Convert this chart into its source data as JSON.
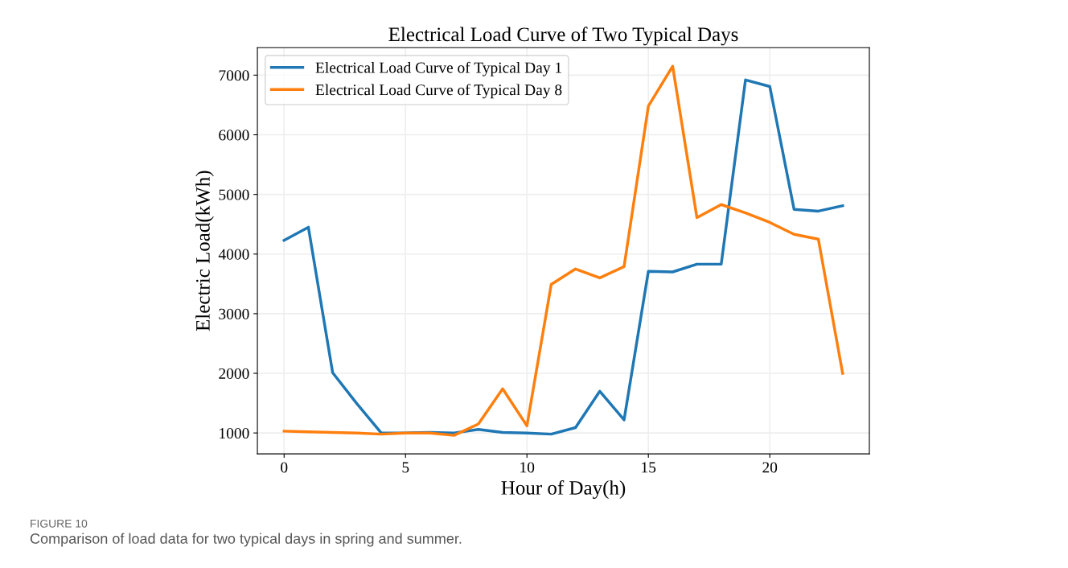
{
  "chart_data": {
    "type": "line",
    "title": "Electrical Load Curve of Two Typical Days",
    "xlabel": "Hour of Day(h)",
    "ylabel": "Electric Load(kWh)",
    "x": [
      0,
      1,
      2,
      3,
      4,
      5,
      6,
      7,
      8,
      9,
      10,
      11,
      12,
      13,
      14,
      15,
      16,
      17,
      18,
      19,
      20,
      21,
      22,
      23
    ],
    "series": [
      {
        "name": "Electrical Load Curve of Typical Day 1",
        "color": "#1f77b4",
        "values": [
          4230,
          4450,
          2010,
          1490,
          1000,
          1000,
          1010,
          1000,
          1060,
          1010,
          1000,
          980,
          1090,
          1700,
          1220,
          3710,
          3700,
          3830,
          3830,
          6920,
          6810,
          4750,
          4720,
          4810
        ]
      },
      {
        "name": "Electrical Load Curve of Typical Day 8",
        "color": "#ff7f0e",
        "values": [
          1030,
          1020,
          1010,
          1000,
          980,
          1000,
          1000,
          960,
          1150,
          1740,
          1120,
          3490,
          3750,
          3600,
          3790,
          6480,
          7150,
          4610,
          4830,
          4690,
          4530,
          4330,
          4250,
          2000
        ]
      }
    ],
    "xlim": [
      -1.1,
      24.1
    ],
    "xticks": [
      0,
      5,
      10,
      15,
      20
    ],
    "ylim": [
      650,
      7460
    ],
    "yticks": [
      1000,
      2000,
      3000,
      4000,
      5000,
      6000,
      7000
    ],
    "grid": true,
    "legend": "top left",
    "marker": "none",
    "line_style": "solid",
    "annotations": [
      "FIGURE 10",
      "Comparison of load data for two typical days in spring and summer."
    ]
  }
}
